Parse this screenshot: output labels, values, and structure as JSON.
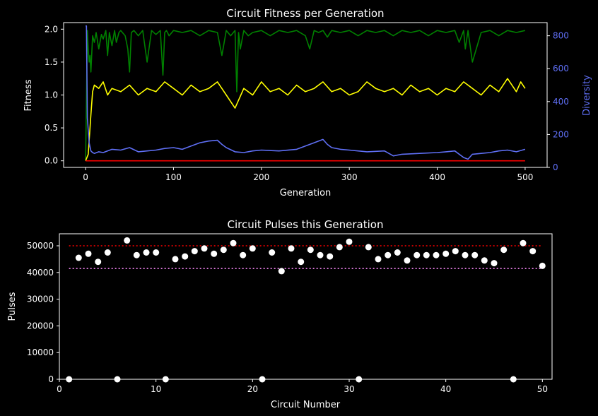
{
  "chart_data": [
    {
      "type": "line",
      "title": "Circuit Fitness per Generation",
      "xlabel": "Generation",
      "ylabel": "Fitness",
      "y2label": "Diversity",
      "xlim": [
        -25,
        525
      ],
      "ylim": [
        -0.1,
        2.1
      ],
      "y2lim": [
        0,
        880
      ],
      "xticks": [
        0,
        100,
        200,
        300,
        400,
        500
      ],
      "yticks": [
        0.0,
        0.5,
        1.0,
        1.5,
        2.0
      ],
      "yticklabels": [
        "0.0",
        "0.5",
        "1.0",
        "1.5",
        "2.0"
      ],
      "y2ticks": [
        0,
        200,
        400,
        600,
        800
      ],
      "colors": {
        "max": "#008000",
        "mean": "#ffff00",
        "min": "#ff0000",
        "diversity": "#5f6ff5",
        "axes": "#ffffff",
        "bg": "#000000"
      },
      "series": [
        {
          "axis": "left",
          "color": "#008000",
          "x": [
            0,
            2,
            3,
            4,
            5,
            6,
            8,
            10,
            12,
            15,
            18,
            20,
            23,
            25,
            27,
            30,
            33,
            35,
            38,
            40,
            45,
            48,
            50,
            52,
            55,
            60,
            65,
            70,
            75,
            80,
            85,
            88,
            90,
            92,
            95,
            100,
            110,
            120,
            130,
            140,
            150,
            155,
            160,
            165,
            170,
            172,
            174,
            176,
            180,
            185,
            190,
            200,
            210,
            220,
            230,
            240,
            250,
            255,
            260,
            265,
            270,
            275,
            280,
            290,
            300,
            310,
            320,
            330,
            340,
            350,
            360,
            370,
            380,
            390,
            400,
            410,
            420,
            425,
            430,
            432,
            435,
            440,
            450,
            460,
            470,
            480,
            490,
            500
          ],
          "values": [
            0,
            1.98,
            1.7,
            1.5,
            1.6,
            1.35,
            1.9,
            1.8,
            1.95,
            1.7,
            1.92,
            1.85,
            1.98,
            1.6,
            1.95,
            1.75,
            1.98,
            1.8,
            1.95,
            1.98,
            1.9,
            1.7,
            1.35,
            1.95,
            1.98,
            1.9,
            1.98,
            1.5,
            1.98,
            1.92,
            1.98,
            1.3,
            1.95,
            1.98,
            1.9,
            1.98,
            1.95,
            1.98,
            1.9,
            1.98,
            1.95,
            1.6,
            1.98,
            1.9,
            1.98,
            1.05,
            1.95,
            1.7,
            1.98,
            1.9,
            1.95,
            1.98,
            1.9,
            1.98,
            1.95,
            1.98,
            1.9,
            1.7,
            1.98,
            1.95,
            1.98,
            1.88,
            1.98,
            1.95,
            1.98,
            1.9,
            1.98,
            1.95,
            1.98,
            1.9,
            1.98,
            1.95,
            1.98,
            1.9,
            1.98,
            1.95,
            1.98,
            1.8,
            1.98,
            1.7,
            1.98,
            1.5,
            1.95,
            1.98,
            1.9,
            1.98,
            1.95,
            1.98
          ]
        },
        {
          "axis": "left",
          "color": "#ffff00",
          "x": [
            0,
            3,
            6,
            8,
            10,
            15,
            20,
            25,
            30,
            40,
            50,
            60,
            70,
            80,
            90,
            100,
            110,
            120,
            130,
            140,
            150,
            160,
            170,
            180,
            190,
            200,
            210,
            220,
            230,
            240,
            250,
            260,
            270,
            280,
            290,
            300,
            310,
            320,
            330,
            340,
            350,
            360,
            370,
            380,
            390,
            400,
            410,
            420,
            430,
            440,
            450,
            460,
            470,
            480,
            490,
            495,
            500
          ],
          "values": [
            0,
            0.1,
            0.7,
            1.05,
            1.15,
            1.1,
            1.2,
            1.0,
            1.1,
            1.05,
            1.15,
            1.0,
            1.1,
            1.05,
            1.2,
            1.1,
            1.0,
            1.15,
            1.05,
            1.1,
            1.2,
            1.0,
            0.8,
            1.1,
            1.0,
            1.2,
            1.05,
            1.1,
            1.0,
            1.15,
            1.05,
            1.1,
            1.2,
            1.05,
            1.1,
            1.0,
            1.05,
            1.2,
            1.1,
            1.05,
            1.1,
            1.0,
            1.15,
            1.05,
            1.1,
            1.0,
            1.1,
            1.05,
            1.2,
            1.1,
            1.0,
            1.15,
            1.05,
            1.25,
            1.05,
            1.2,
            1.1
          ]
        },
        {
          "axis": "left",
          "color": "#ff0000",
          "x": [
            0,
            500
          ],
          "values": [
            0,
            0
          ]
        },
        {
          "axis": "right",
          "color": "#5f6ff5",
          "x": [
            0,
            1,
            2,
            4,
            6,
            8,
            10,
            15,
            20,
            30,
            40,
            50,
            60,
            70,
            80,
            90,
            100,
            110,
            120,
            130,
            140,
            150,
            155,
            160,
            170,
            180,
            190,
            200,
            220,
            240,
            250,
            260,
            270,
            275,
            280,
            290,
            300,
            320,
            340,
            350,
            360,
            380,
            400,
            410,
            420,
            430,
            435,
            440,
            450,
            460,
            470,
            480,
            490,
            500
          ],
          "values": [
            860,
            860,
            300,
            150,
            100,
            90,
            85,
            95,
            90,
            110,
            105,
            120,
            95,
            100,
            105,
            115,
            120,
            110,
            130,
            150,
            160,
            165,
            140,
            120,
            95,
            90,
            100,
            105,
            100,
            110,
            130,
            150,
            170,
            140,
            120,
            110,
            105,
            95,
            100,
            70,
            80,
            85,
            90,
            95,
            100,
            60,
            50,
            80,
            85,
            90,
            100,
            105,
            95,
            110
          ]
        }
      ]
    },
    {
      "type": "scatter",
      "title": "Circuit Pulses this Generation",
      "xlabel": "Circuit Number",
      "ylabel": "Pulses",
      "xlim": [
        0,
        51
      ],
      "ylim": [
        0,
        54500
      ],
      "xticks": [
        0,
        10,
        20,
        30,
        40,
        50
      ],
      "yticks": [
        0,
        10000,
        20000,
        30000,
        40000,
        50000
      ],
      "hlines": [
        {
          "y": 50000,
          "color": "#ff0000",
          "style": "dotted"
        },
        {
          "y": 41500,
          "color": "#ee82ee",
          "style": "dotted"
        }
      ],
      "point_color": "#ffffff",
      "x": [
        1,
        2,
        3,
        4,
        5,
        6,
        7,
        8,
        9,
        10,
        11,
        12,
        13,
        14,
        15,
        16,
        17,
        18,
        19,
        20,
        21,
        22,
        23,
        24,
        25,
        26,
        27,
        28,
        29,
        30,
        31,
        32,
        33,
        34,
        35,
        36,
        37,
        38,
        39,
        40,
        41,
        42,
        43,
        44,
        45,
        46,
        47,
        48,
        49,
        50
      ],
      "values": [
        0,
        45500,
        47000,
        44000,
        47500,
        0,
        52000,
        46500,
        47500,
        47500,
        0,
        45000,
        46000,
        48000,
        49000,
        47000,
        48500,
        51000,
        46500,
        49000,
        0,
        47500,
        40500,
        49000,
        44000,
        48500,
        46500,
        46000,
        49500,
        51500,
        0,
        49500,
        45000,
        46500,
        47500,
        44500,
        46500,
        46500,
        46500,
        47000,
        48000,
        46500,
        46500,
        44500,
        43500,
        48500,
        0,
        51000,
        48000,
        42500
      ]
    }
  ]
}
